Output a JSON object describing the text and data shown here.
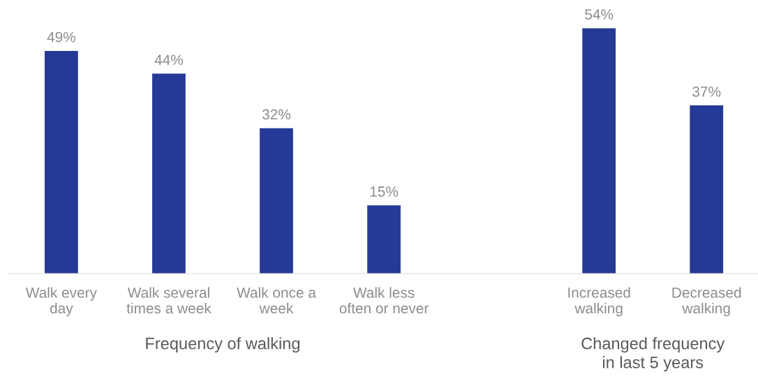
{
  "chart_data": {
    "type": "bar",
    "categories": [
      "Walk every\nday",
      "Walk several\ntimes a week",
      "Walk once a\nweek",
      "Walk less\noften or never",
      null,
      "Increased\nwalking",
      "Decreased\nwalking"
    ],
    "values": [
      49,
      44,
      32,
      15,
      null,
      54,
      37
    ],
    "color": "#253a97",
    "value_labels": [
      "49%",
      "44%",
      "32%",
      "15%",
      null,
      "54%",
      "37%"
    ],
    "grid": false,
    "legend": false,
    "annotations": [
      "Frequency of walking",
      "Changed frequency\nin last 5 years"
    ]
  }
}
